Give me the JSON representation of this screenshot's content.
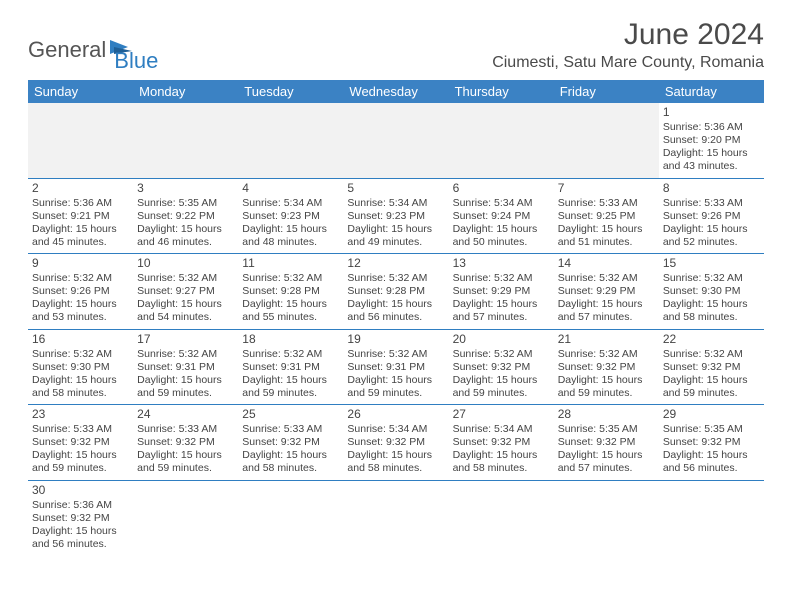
{
  "logo": {
    "text1": "General",
    "text2": "Blue"
  },
  "title": "June 2024",
  "location": "Ciumesti, Satu Mare County, Romania",
  "colors": {
    "header_bg": "#3b82c4",
    "header_fg": "#ffffff",
    "rule": "#2f7ec1",
    "empty_bg": "#f2f2f2",
    "text": "#444444",
    "logo_gray": "#555555",
    "logo_blue": "#2f7ec1"
  },
  "day_headers": [
    "Sunday",
    "Monday",
    "Tuesday",
    "Wednesday",
    "Thursday",
    "Friday",
    "Saturday"
  ],
  "weeks": [
    [
      {
        "empty": true
      },
      {
        "empty": true
      },
      {
        "empty": true
      },
      {
        "empty": true
      },
      {
        "empty": true
      },
      {
        "empty": true
      },
      {
        "n": "1",
        "sr": "Sunrise: 5:36 AM",
        "ss": "Sunset: 9:20 PM",
        "d1": "Daylight: 15 hours",
        "d2": "and 43 minutes."
      }
    ],
    [
      {
        "n": "2",
        "sr": "Sunrise: 5:36 AM",
        "ss": "Sunset: 9:21 PM",
        "d1": "Daylight: 15 hours",
        "d2": "and 45 minutes."
      },
      {
        "n": "3",
        "sr": "Sunrise: 5:35 AM",
        "ss": "Sunset: 9:22 PM",
        "d1": "Daylight: 15 hours",
        "d2": "and 46 minutes."
      },
      {
        "n": "4",
        "sr": "Sunrise: 5:34 AM",
        "ss": "Sunset: 9:23 PM",
        "d1": "Daylight: 15 hours",
        "d2": "and 48 minutes."
      },
      {
        "n": "5",
        "sr": "Sunrise: 5:34 AM",
        "ss": "Sunset: 9:23 PM",
        "d1": "Daylight: 15 hours",
        "d2": "and 49 minutes."
      },
      {
        "n": "6",
        "sr": "Sunrise: 5:34 AM",
        "ss": "Sunset: 9:24 PM",
        "d1": "Daylight: 15 hours",
        "d2": "and 50 minutes."
      },
      {
        "n": "7",
        "sr": "Sunrise: 5:33 AM",
        "ss": "Sunset: 9:25 PM",
        "d1": "Daylight: 15 hours",
        "d2": "and 51 minutes."
      },
      {
        "n": "8",
        "sr": "Sunrise: 5:33 AM",
        "ss": "Sunset: 9:26 PM",
        "d1": "Daylight: 15 hours",
        "d2": "and 52 minutes."
      }
    ],
    [
      {
        "n": "9",
        "sr": "Sunrise: 5:32 AM",
        "ss": "Sunset: 9:26 PM",
        "d1": "Daylight: 15 hours",
        "d2": "and 53 minutes."
      },
      {
        "n": "10",
        "sr": "Sunrise: 5:32 AM",
        "ss": "Sunset: 9:27 PM",
        "d1": "Daylight: 15 hours",
        "d2": "and 54 minutes."
      },
      {
        "n": "11",
        "sr": "Sunrise: 5:32 AM",
        "ss": "Sunset: 9:28 PM",
        "d1": "Daylight: 15 hours",
        "d2": "and 55 minutes."
      },
      {
        "n": "12",
        "sr": "Sunrise: 5:32 AM",
        "ss": "Sunset: 9:28 PM",
        "d1": "Daylight: 15 hours",
        "d2": "and 56 minutes."
      },
      {
        "n": "13",
        "sr": "Sunrise: 5:32 AM",
        "ss": "Sunset: 9:29 PM",
        "d1": "Daylight: 15 hours",
        "d2": "and 57 minutes."
      },
      {
        "n": "14",
        "sr": "Sunrise: 5:32 AM",
        "ss": "Sunset: 9:29 PM",
        "d1": "Daylight: 15 hours",
        "d2": "and 57 minutes."
      },
      {
        "n": "15",
        "sr": "Sunrise: 5:32 AM",
        "ss": "Sunset: 9:30 PM",
        "d1": "Daylight: 15 hours",
        "d2": "and 58 minutes."
      }
    ],
    [
      {
        "n": "16",
        "sr": "Sunrise: 5:32 AM",
        "ss": "Sunset: 9:30 PM",
        "d1": "Daylight: 15 hours",
        "d2": "and 58 minutes."
      },
      {
        "n": "17",
        "sr": "Sunrise: 5:32 AM",
        "ss": "Sunset: 9:31 PM",
        "d1": "Daylight: 15 hours",
        "d2": "and 59 minutes."
      },
      {
        "n": "18",
        "sr": "Sunrise: 5:32 AM",
        "ss": "Sunset: 9:31 PM",
        "d1": "Daylight: 15 hours",
        "d2": "and 59 minutes."
      },
      {
        "n": "19",
        "sr": "Sunrise: 5:32 AM",
        "ss": "Sunset: 9:31 PM",
        "d1": "Daylight: 15 hours",
        "d2": "and 59 minutes."
      },
      {
        "n": "20",
        "sr": "Sunrise: 5:32 AM",
        "ss": "Sunset: 9:32 PM",
        "d1": "Daylight: 15 hours",
        "d2": "and 59 minutes."
      },
      {
        "n": "21",
        "sr": "Sunrise: 5:32 AM",
        "ss": "Sunset: 9:32 PM",
        "d1": "Daylight: 15 hours",
        "d2": "and 59 minutes."
      },
      {
        "n": "22",
        "sr": "Sunrise: 5:32 AM",
        "ss": "Sunset: 9:32 PM",
        "d1": "Daylight: 15 hours",
        "d2": "and 59 minutes."
      }
    ],
    [
      {
        "n": "23",
        "sr": "Sunrise: 5:33 AM",
        "ss": "Sunset: 9:32 PM",
        "d1": "Daylight: 15 hours",
        "d2": "and 59 minutes."
      },
      {
        "n": "24",
        "sr": "Sunrise: 5:33 AM",
        "ss": "Sunset: 9:32 PM",
        "d1": "Daylight: 15 hours",
        "d2": "and 59 minutes."
      },
      {
        "n": "25",
        "sr": "Sunrise: 5:33 AM",
        "ss": "Sunset: 9:32 PM",
        "d1": "Daylight: 15 hours",
        "d2": "and 58 minutes."
      },
      {
        "n": "26",
        "sr": "Sunrise: 5:34 AM",
        "ss": "Sunset: 9:32 PM",
        "d1": "Daylight: 15 hours",
        "d2": "and 58 minutes."
      },
      {
        "n": "27",
        "sr": "Sunrise: 5:34 AM",
        "ss": "Sunset: 9:32 PM",
        "d1": "Daylight: 15 hours",
        "d2": "and 58 minutes."
      },
      {
        "n": "28",
        "sr": "Sunrise: 5:35 AM",
        "ss": "Sunset: 9:32 PM",
        "d1": "Daylight: 15 hours",
        "d2": "and 57 minutes."
      },
      {
        "n": "29",
        "sr": "Sunrise: 5:35 AM",
        "ss": "Sunset: 9:32 PM",
        "d1": "Daylight: 15 hours",
        "d2": "and 56 minutes."
      }
    ],
    [
      {
        "n": "30",
        "sr": "Sunrise: 5:36 AM",
        "ss": "Sunset: 9:32 PM",
        "d1": "Daylight: 15 hours",
        "d2": "and 56 minutes."
      },
      {
        "trailing": true
      },
      {
        "trailing": true
      },
      {
        "trailing": true
      },
      {
        "trailing": true
      },
      {
        "trailing": true
      },
      {
        "trailing": true
      }
    ]
  ]
}
